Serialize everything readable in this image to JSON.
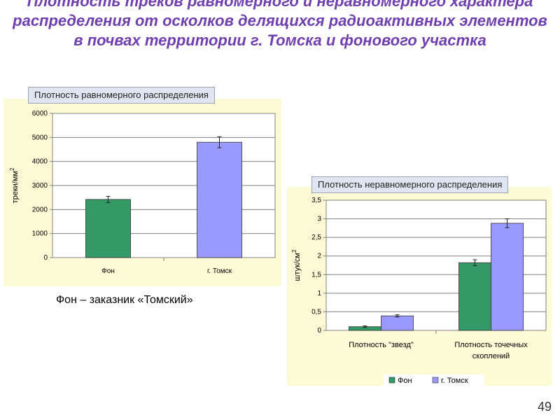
{
  "slide": {
    "title": "Плотность треков равномерного и неравномерного характера распределения от осколков делящихся радиоактивных элементов в почвах территории г. Томска и фонового участка",
    "note": "Фон – заказник «Томский»",
    "page_number": "49"
  },
  "colors": {
    "fon": "#339966",
    "tomsk": "#9999ff",
    "title": "#6f3fb0",
    "chart_bg": "#fdfbd6"
  },
  "chart_data": [
    {
      "type": "bar",
      "header": "Плотность равномерного распределения",
      "categories": [
        "Фон",
        "г. Томск"
      ],
      "values": [
        2420,
        4800
      ],
      "errors": [
        130,
        230
      ],
      "bar_colors": [
        "#339966",
        "#9999ff"
      ],
      "ylabel": "треки/мм",
      "ylabel_sup": "2",
      "ylim": [
        0,
        6000
      ],
      "yticks": [
        "0",
        "1000",
        "2000",
        "3000",
        "4000",
        "5000",
        "6000"
      ],
      "grid": true,
      "legend": "none"
    },
    {
      "type": "bar",
      "header": "Плотность неравномерного распределения",
      "categories": [
        "Плотность \"звезд\"",
        "Плотность точечных скоплений"
      ],
      "category_lines": [
        [
          "Плотность \"звезд\""
        ],
        [
          "Плотность точечных",
          "скоплений"
        ]
      ],
      "series": [
        {
          "name": "Фон",
          "values": [
            0.1,
            1.82
          ],
          "errors": [
            0.02,
            0.08
          ]
        },
        {
          "name": "г. Томск",
          "values": [
            0.39,
            2.88
          ],
          "errors": [
            0.03,
            0.12
          ]
        }
      ],
      "ylabel": "штук/см",
      "ylabel_sup": "2",
      "ylim": [
        0,
        3.5
      ],
      "yticks": [
        "0",
        "0,5",
        "1",
        "1,5",
        "2",
        "2,5",
        "3",
        "3,5"
      ],
      "grid": true,
      "legend": "bottom"
    }
  ]
}
